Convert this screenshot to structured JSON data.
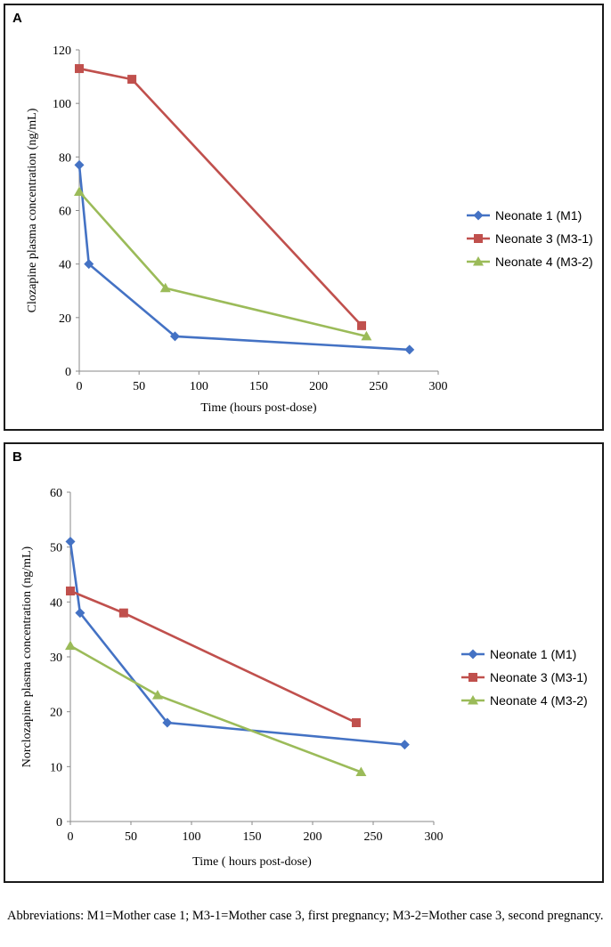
{
  "colors": {
    "series_1": "#4472C4",
    "series_2": "#C0504D",
    "series_3": "#9BBB59",
    "axis": "#8a8a8a"
  },
  "chart_data": [
    {
      "panel": "A",
      "type": "line",
      "title": "",
      "xlabel": "Time (hours post-dose)",
      "ylabel": "Clozapine plasma concentration (ng/mL)",
      "xlim": [
        0,
        300
      ],
      "ylim": [
        0,
        120
      ],
      "xticks": [
        0,
        50,
        100,
        150,
        200,
        250,
        300
      ],
      "yticks": [
        0,
        20,
        40,
        60,
        80,
        100,
        120
      ],
      "grid": false,
      "legend": "right",
      "series": [
        {
          "name": "Neonate 1 (M1)",
          "marker": "diamond",
          "x": [
            0,
            8,
            80,
            276
          ],
          "y": [
            77,
            40,
            13,
            8
          ]
        },
        {
          "name": "Neonate 3 (M3-1)",
          "marker": "square",
          "x": [
            0,
            44,
            236
          ],
          "y": [
            113,
            109,
            17
          ]
        },
        {
          "name": "Neonate 4 (M3-2)",
          "marker": "triangle",
          "x": [
            0,
            72,
            240
          ],
          "y": [
            67,
            31,
            13
          ]
        }
      ]
    },
    {
      "panel": "B",
      "type": "line",
      "title": "",
      "xlabel": "Time ( hours post-dose)",
      "ylabel": "Norclozapine plasma concentration (ng/mL)",
      "xlim": [
        0,
        300
      ],
      "ylim": [
        0,
        60
      ],
      "xticks": [
        0,
        50,
        100,
        150,
        200,
        250,
        300
      ],
      "yticks": [
        0,
        10,
        20,
        30,
        40,
        50,
        60
      ],
      "grid": false,
      "legend": "right",
      "series": [
        {
          "name": "Neonate 1 (M1)",
          "marker": "diamond",
          "x": [
            0,
            8,
            80,
            276
          ],
          "y": [
            51,
            38,
            18,
            14
          ]
        },
        {
          "name": "Neonate 3 (M3-1)",
          "marker": "square",
          "x": [
            0,
            44,
            236
          ],
          "y": [
            42,
            38,
            18
          ]
        },
        {
          "name": "Neonate 4 (M3-2)",
          "marker": "triangle",
          "x": [
            0,
            72,
            240
          ],
          "y": [
            32,
            23,
            9
          ]
        }
      ]
    }
  ],
  "footnote": "Abbreviations: M1=Mother case 1; M3-1=Mother case 3, first pregnancy; M3-2=Mother case 3, second pregnancy."
}
